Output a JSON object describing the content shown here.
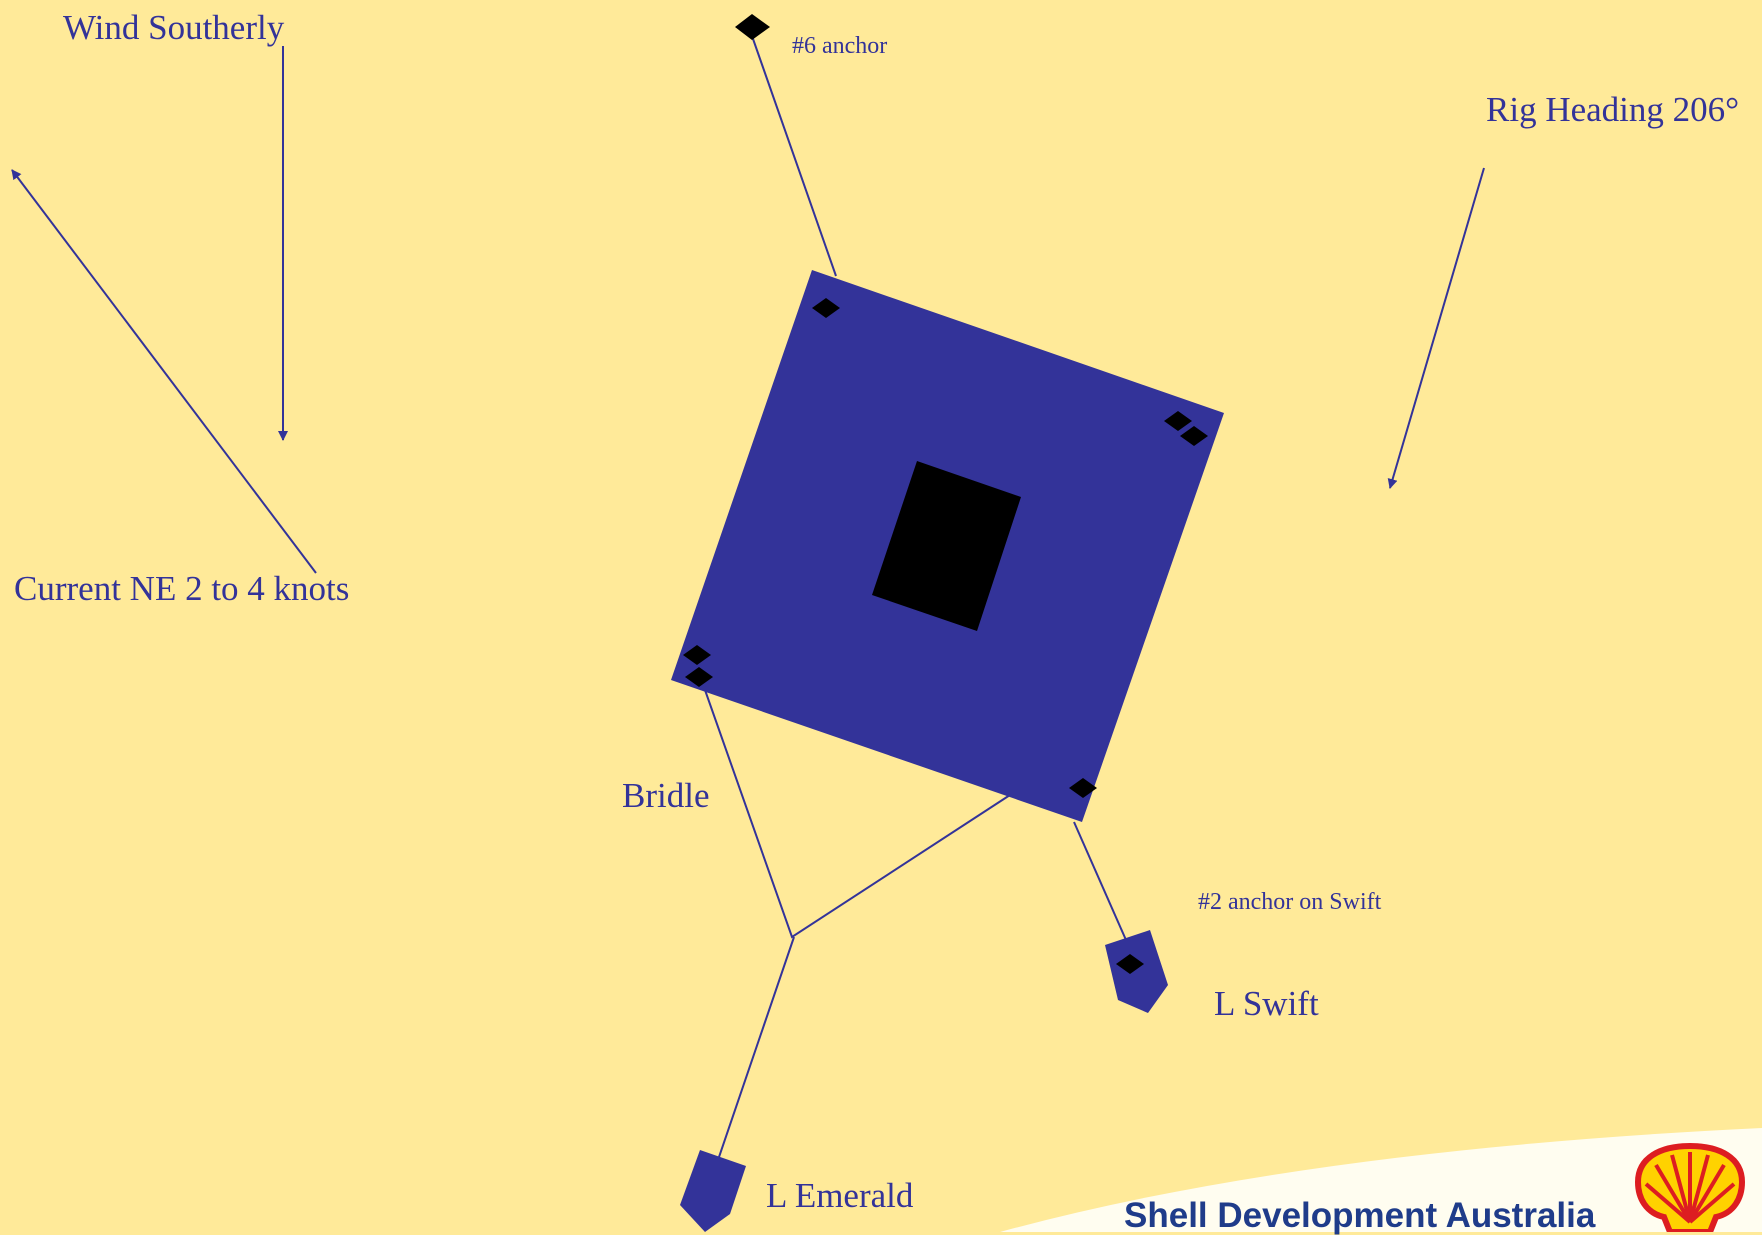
{
  "labels": {
    "wind": "Wind Southerly",
    "current": "Current NE 2 to 4 knots",
    "rig_heading": "Rig Heading 206°",
    "anchor6": "#6 anchor",
    "anchor2": "#2 anchor on Swift",
    "bridle": "Bridle",
    "vessel_swift": "L Swift",
    "vessel_emerald": "L Emerald"
  },
  "branding": {
    "company": "Shell Development Australia",
    "logo": "shell-pecten-logo"
  },
  "colors": {
    "background": "#FFEA99",
    "rig": "#333399",
    "moonpool": "#000000",
    "lines": "#333399",
    "text": "#333399",
    "brand_text": "#1F3C8A",
    "logo_fill": "#FFD200",
    "logo_outline": "#DD1D21"
  }
}
